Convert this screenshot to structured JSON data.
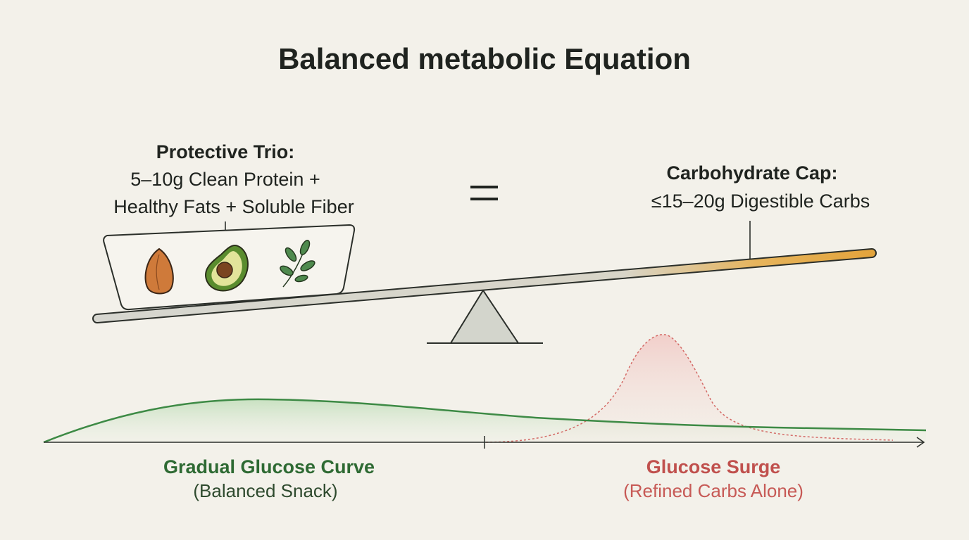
{
  "title": "Balanced metabolic Equation",
  "left": {
    "heading": "Protective Trio:",
    "lines": [
      "5–10g Clean Protein +",
      "Healthy Fats + Soluble Fiber"
    ]
  },
  "right": {
    "heading": "Carbohydrate Cap:",
    "lines": [
      "≤15–20g Digestible Carbs"
    ]
  },
  "curves": {
    "gradual": {
      "label": "Gradual Glucose Curve",
      "sublabel": "(Balanced Snack)"
    },
    "surge": {
      "label": "Glucose Surge",
      "sublabel": "(Refined Carbs Alone)"
    }
  }
}
